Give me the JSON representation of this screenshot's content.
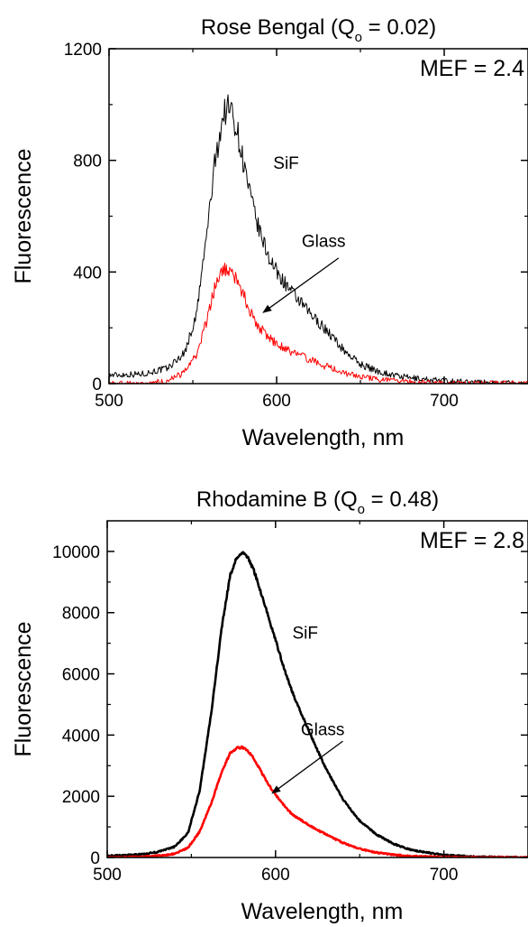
{
  "chart_data": [
    {
      "type": "line",
      "title_main": "Rose Bengal (Q",
      "title_sub": "o",
      "title_tail": " = 0.02)",
      "xlabel": "Wavelength, nm",
      "ylabel": "Fluorescence",
      "xlim": [
        500,
        750
      ],
      "ylim": [
        0,
        1200
      ],
      "xticks": [
        500,
        600,
        700
      ],
      "yticks": [
        0,
        400,
        800,
        1200
      ],
      "xtick_labels": [
        "500",
        "600",
        "700"
      ],
      "ytick_labels": [
        "0",
        "400",
        "800",
        "1200"
      ],
      "annotation": "MEF = 2.4",
      "noisy": true,
      "series": [
        {
          "name": "SiF",
          "color": "#000000",
          "x": [
            500,
            520,
            535,
            545,
            552,
            558,
            563,
            567,
            570,
            573,
            576,
            580,
            585,
            590,
            595,
            600,
            610,
            620,
            630,
            640,
            650,
            660,
            670,
            680,
            700,
            720,
            750
          ],
          "y": [
            30,
            35,
            55,
            110,
            240,
            520,
            780,
            930,
            990,
            980,
            920,
            800,
            650,
            540,
            460,
            400,
            320,
            250,
            190,
            120,
            70,
            45,
            30,
            20,
            10,
            5,
            0
          ]
        },
        {
          "name": "Glass",
          "color": "#ff0000",
          "x": [
            500,
            520,
            535,
            545,
            552,
            558,
            563,
            567,
            570,
            573,
            576,
            580,
            585,
            590,
            595,
            600,
            610,
            620,
            630,
            640,
            650,
            660,
            670,
            680,
            700,
            720,
            750
          ],
          "y": [
            0,
            0,
            10,
            40,
            100,
            220,
            340,
            400,
            410,
            400,
            370,
            320,
            250,
            200,
            170,
            140,
            110,
            85,
            60,
            40,
            25,
            15,
            10,
            5,
            0,
            0,
            0
          ]
        }
      ],
      "labels": [
        {
          "text": "SiF",
          "x": 598,
          "y": 770
        },
        {
          "text": "Glass",
          "x": 615,
          "y": 490
        }
      ],
      "arrow": {
        "from": [
          637,
          450
        ],
        "to": [
          592,
          255
        ]
      }
    },
    {
      "type": "line",
      "title_main": "Rhodamine B (Q",
      "title_sub": "o",
      "title_tail": " = 0.48)",
      "xlabel": "Wavelength, nm",
      "ylabel": "Fluorescence",
      "xlim": [
        500,
        750
      ],
      "ylim": [
        0,
        11000
      ],
      "xticks": [
        500,
        600,
        700
      ],
      "yticks": [
        0,
        2000,
        4000,
        6000,
        8000,
        10000
      ],
      "xtick_labels": [
        "500",
        "600",
        "700"
      ],
      "ytick_labels": [
        "0",
        "2000",
        "4000",
        "6000",
        "8000",
        "10000"
      ],
      "annotation": "MEF = 2.8",
      "noisy": false,
      "series": [
        {
          "name": "SiF",
          "color": "#000000",
          "x": [
            500,
            520,
            530,
            540,
            548,
            555,
            562,
            568,
            573,
            577,
            580,
            583,
            587,
            590,
            595,
            600,
            605,
            610,
            620,
            630,
            640,
            650,
            660,
            670,
            680,
            700,
            720,
            750
          ],
          "y": [
            50,
            100,
            180,
            350,
            800,
            2200,
            4800,
            7500,
            9200,
            9800,
            9950,
            9850,
            9400,
            8900,
            8000,
            7100,
            6200,
            5400,
            4100,
            2900,
            1900,
            1200,
            750,
            450,
            250,
            80,
            20,
            0
          ]
        },
        {
          "name": "Glass",
          "color": "#ff0000",
          "x": [
            500,
            520,
            530,
            540,
            548,
            555,
            562,
            568,
            573,
            577,
            580,
            583,
            587,
            590,
            595,
            600,
            605,
            610,
            620,
            630,
            640,
            650,
            660,
            670,
            680,
            700,
            720,
            750
          ],
          "y": [
            0,
            20,
            50,
            120,
            320,
            850,
            1800,
            2800,
            3400,
            3580,
            3600,
            3520,
            3250,
            2950,
            2450,
            2050,
            1700,
            1400,
            1050,
            750,
            480,
            280,
            160,
            90,
            45,
            15,
            5,
            0
          ]
        }
      ],
      "labels": [
        {
          "text": "SiF",
          "x": 610,
          "y": 7150
        },
        {
          "text": "Glass",
          "x": 615,
          "y": 4000
        }
      ],
      "arrow": {
        "from": [
          640,
          3800
        ],
        "to": [
          598,
          2100
        ]
      }
    }
  ]
}
